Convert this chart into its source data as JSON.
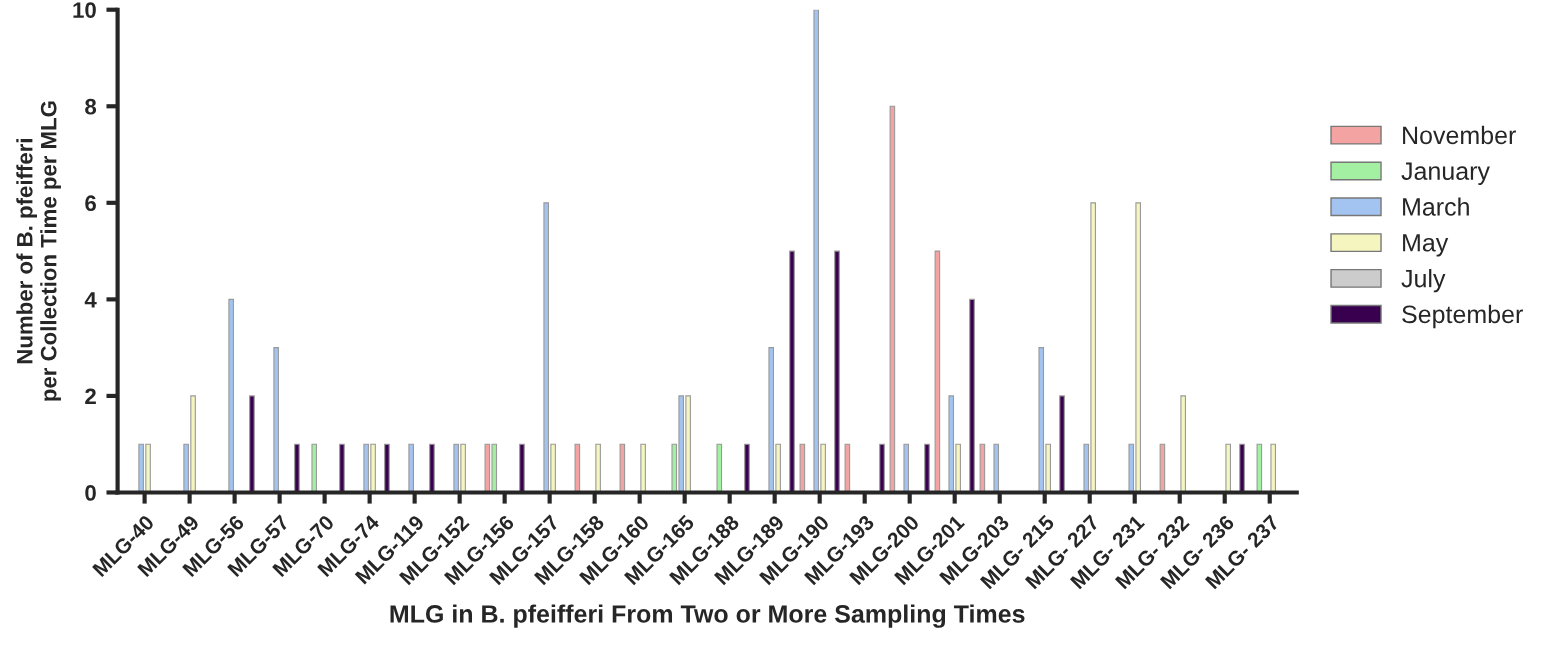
{
  "chart_data": {
    "type": "bar",
    "xlabel": "MLG in B. pfeifferi From Two or More Sampling Times",
    "ylabel": "Number of B. pfeifferi\nper Collection Time per MLG",
    "categories": [
      "MLG-40",
      "MLG-49",
      "MLG-56",
      "MLG-57",
      "MLG-70",
      "MLG-74",
      "MLG-119",
      "MLG-152",
      "MLG-156",
      "MLG-157",
      "MLG-158",
      "MLG-160",
      "MLG-165",
      "MLG-188",
      "MLG-189",
      "MLG-190",
      "MLG-193",
      "MLG-200",
      "MLG-201",
      "MLG-203",
      "MLG- 215",
      "MLG- 227",
      "MLG- 231",
      "MLG- 232",
      "MLG- 236",
      "MLG- 237"
    ],
    "series": [
      {
        "name": "November",
        "color": "#f4a3a3",
        "values": [
          null,
          null,
          null,
          null,
          null,
          null,
          null,
          null,
          1,
          null,
          1,
          1,
          null,
          null,
          null,
          1,
          1,
          8,
          5,
          1,
          null,
          null,
          null,
          1,
          null,
          null
        ]
      },
      {
        "name": "January",
        "color": "#a3f0a3",
        "values": [
          null,
          null,
          null,
          null,
          1,
          null,
          null,
          null,
          1,
          null,
          null,
          null,
          1,
          1,
          null,
          null,
          null,
          null,
          null,
          null,
          null,
          null,
          null,
          null,
          null,
          1
        ]
      },
      {
        "name": "March",
        "color": "#a3c4f0",
        "values": [
          1,
          1,
          4,
          3,
          null,
          1,
          1,
          1,
          null,
          6,
          null,
          null,
          2,
          null,
          3,
          10,
          null,
          1,
          2,
          1,
          3,
          1,
          1,
          null,
          null,
          null
        ]
      },
      {
        "name": "May",
        "color": "#f5f5c0",
        "values": [
          1,
          2,
          null,
          null,
          null,
          1,
          null,
          1,
          null,
          1,
          1,
          1,
          2,
          null,
          1,
          1,
          null,
          null,
          1,
          null,
          1,
          6,
          6,
          2,
          1,
          1
        ]
      },
      {
        "name": "July",
        "color": "#cccccc",
        "values": [
          null,
          null,
          null,
          null,
          null,
          null,
          null,
          null,
          null,
          null,
          null,
          null,
          null,
          null,
          null,
          null,
          null,
          null,
          null,
          null,
          null,
          null,
          null,
          null,
          null,
          null
        ]
      },
      {
        "name": "September",
        "color": "#3a0050",
        "values": [
          null,
          null,
          2,
          1,
          1,
          1,
          1,
          null,
          1,
          null,
          null,
          null,
          null,
          1,
          5,
          5,
          1,
          1,
          4,
          null,
          2,
          null,
          null,
          null,
          1,
          null
        ]
      }
    ],
    "ylim": [
      0,
      10
    ],
    "yticks": [
      0,
      2,
      4,
      6,
      8,
      10
    ],
    "grid": false,
    "legend": "right"
  }
}
